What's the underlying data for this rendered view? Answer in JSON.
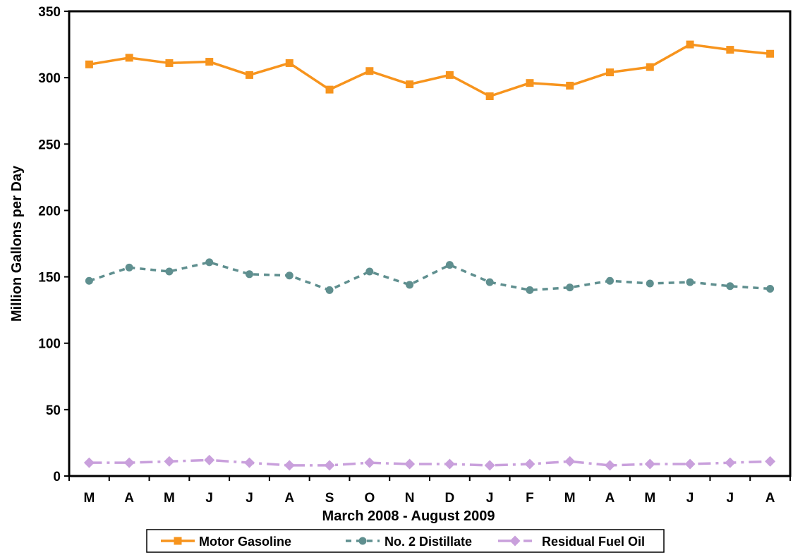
{
  "chart_data": {
    "type": "line",
    "title": "",
    "xlabel": "March 2008 - August 2009",
    "ylabel": "Million Gallons per Day",
    "ylim": [
      0,
      350
    ],
    "yticks": [
      0,
      50,
      100,
      150,
      200,
      250,
      300,
      350
    ],
    "categories": [
      "M",
      "A",
      "M",
      "J",
      "J",
      "A",
      "S",
      "O",
      "N",
      "D",
      "J",
      "F",
      "M",
      "A",
      "M",
      "J",
      "J",
      "A"
    ],
    "grid": false,
    "legend": "bottom",
    "series": [
      {
        "name": "Motor Gasoline",
        "color": "#f7941d",
        "marker": "square",
        "line": "solid",
        "values": [
          310,
          315,
          311,
          312,
          302,
          311,
          291,
          305,
          295,
          302,
          286,
          296,
          294,
          304,
          308,
          325,
          321,
          318
        ]
      },
      {
        "name": "No. 2 Distillate",
        "color": "#5f8f8f",
        "marker": "circle",
        "line": "dashed",
        "values": [
          147,
          157,
          154,
          161,
          152,
          151,
          140,
          154,
          144,
          159,
          146,
          140,
          142,
          147,
          145,
          146,
          143,
          141
        ]
      },
      {
        "name": "Residual Fuel Oil",
        "color": "#c9a0dc",
        "marker": "diamond",
        "line": "dashdot",
        "values": [
          10,
          10,
          11,
          12,
          10,
          8,
          8,
          10,
          9,
          9,
          8,
          9,
          11,
          8,
          9,
          9,
          10,
          11
        ]
      }
    ]
  }
}
